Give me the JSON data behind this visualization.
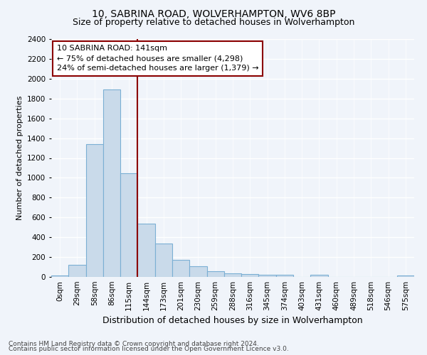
{
  "title1": "10, SABRINA ROAD, WOLVERHAMPTON, WV6 8BP",
  "title2": "Size of property relative to detached houses in Wolverhampton",
  "xlabel": "Distribution of detached houses by size in Wolverhampton",
  "ylabel": "Number of detached properties",
  "footer1": "Contains HM Land Registry data © Crown copyright and database right 2024.",
  "footer2": "Contains public sector information licensed under the Open Government Licence v3.0.",
  "bar_labels": [
    "0sqm",
    "29sqm",
    "58sqm",
    "86sqm",
    "115sqm",
    "144sqm",
    "173sqm",
    "201sqm",
    "230sqm",
    "259sqm",
    "288sqm",
    "316sqm",
    "345sqm",
    "374sqm",
    "403sqm",
    "431sqm",
    "460sqm",
    "489sqm",
    "518sqm",
    "546sqm",
    "575sqm"
  ],
  "bar_values": [
    15,
    125,
    1340,
    1890,
    1045,
    540,
    335,
    170,
    110,
    60,
    38,
    30,
    25,
    18,
    0,
    20,
    0,
    0,
    0,
    0,
    15
  ],
  "bar_color": "#c9daea",
  "bar_edgecolor": "#7bafd4",
  "vline_x": 4.5,
  "vline_color": "#8b0000",
  "annotation_line1": "10 SABRINA ROAD: 141sqm",
  "annotation_line2": "← 75% of detached houses are smaller (4,298)",
  "annotation_line3": "24% of semi-detached houses are larger (1,379) →",
  "annotation_box_color": "#8b0000",
  "ylim": [
    0,
    2400
  ],
  "yticks": [
    0,
    200,
    400,
    600,
    800,
    1000,
    1200,
    1400,
    1600,
    1800,
    2000,
    2200,
    2400
  ],
  "background_color": "#f0f4fa",
  "grid_color": "#ffffff",
  "title1_fontsize": 10,
  "title2_fontsize": 9,
  "xlabel_fontsize": 9,
  "ylabel_fontsize": 8,
  "tick_fontsize": 7.5,
  "annotation_fontsize": 8,
  "footer_fontsize": 6.5
}
